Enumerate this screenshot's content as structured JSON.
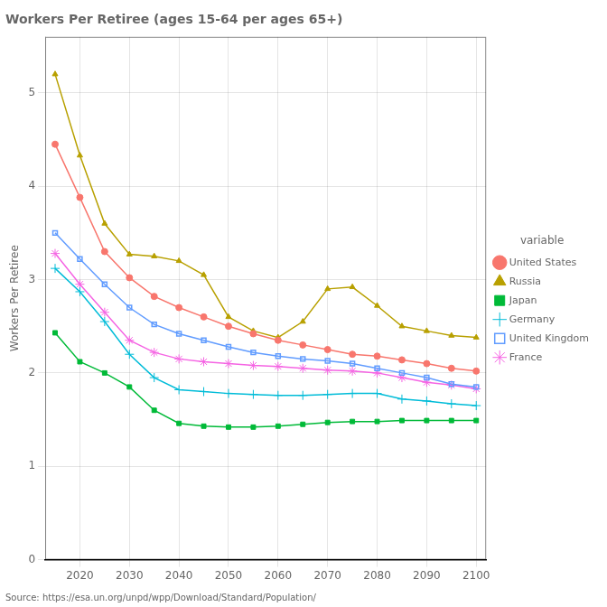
{
  "chart_data": {
    "type": "line",
    "title": "Workers Per Retiree (ages 15-64 per ages 65+)",
    "ylabel": "Workers Per Retiree",
    "source": "Source: https://esa.un.org/unpd/wpp/Download/Standard/Population/",
    "legend_title": "variable",
    "legend": "right",
    "grid": true,
    "x": [
      2015,
      2020,
      2025,
      2030,
      2035,
      2040,
      2045,
      2050,
      2055,
      2060,
      2065,
      2070,
      2075,
      2080,
      2085,
      2090,
      2095,
      2100
    ],
    "series": [
      {
        "name": "United States",
        "color": "#f8766d",
        "marker": "circle",
        "values": [
          4.45,
          3.88,
          3.3,
          3.02,
          2.82,
          2.7,
          2.6,
          2.5,
          2.42,
          2.35,
          2.3,
          2.25,
          2.2,
          2.18,
          2.14,
          2.1,
          2.05,
          2.02
        ]
      },
      {
        "name": "Russia",
        "color": "#b8a000",
        "marker": "triangle",
        "values": [
          5.2,
          4.33,
          3.6,
          3.27,
          3.25,
          3.2,
          3.05,
          2.6,
          2.45,
          2.38,
          2.55,
          2.9,
          2.92,
          2.72,
          2.5,
          2.45,
          2.4,
          2.38
        ]
      },
      {
        "name": "Japan",
        "color": "#00ba38",
        "marker": "square",
        "values": [
          2.43,
          2.12,
          2.0,
          1.85,
          1.6,
          1.46,
          1.43,
          1.42,
          1.42,
          1.43,
          1.45,
          1.47,
          1.48,
          1.48,
          1.49,
          1.49,
          1.49,
          1.49
        ]
      },
      {
        "name": "Germany",
        "color": "#00bcd8",
        "marker": "plus",
        "values": [
          3.12,
          2.87,
          2.55,
          2.2,
          1.95,
          1.82,
          1.8,
          1.78,
          1.77,
          1.76,
          1.76,
          1.77,
          1.78,
          1.78,
          1.72,
          1.7,
          1.67,
          1.65
        ]
      },
      {
        "name": "United Kingdom",
        "color": "#619cff",
        "marker": "open_square",
        "values": [
          3.5,
          3.22,
          2.95,
          2.7,
          2.52,
          2.42,
          2.35,
          2.28,
          2.22,
          2.18,
          2.15,
          2.13,
          2.1,
          2.05,
          2.0,
          1.95,
          1.88,
          1.85
        ]
      },
      {
        "name": "France",
        "color": "#f564e3",
        "marker": "star",
        "values": [
          3.28,
          2.95,
          2.65,
          2.35,
          2.22,
          2.15,
          2.12,
          2.1,
          2.08,
          2.07,
          2.05,
          2.03,
          2.02,
          2.0,
          1.95,
          1.9,
          1.87,
          1.83
        ]
      }
    ],
    "xlim": [
      2013,
      2102
    ],
    "ylim": [
      0,
      5.6
    ],
    "xticks": [
      2020,
      2030,
      2040,
      2050,
      2060,
      2070,
      2080,
      2090,
      2100
    ],
    "yticks": [
      0,
      1,
      2,
      3,
      4,
      5
    ]
  }
}
